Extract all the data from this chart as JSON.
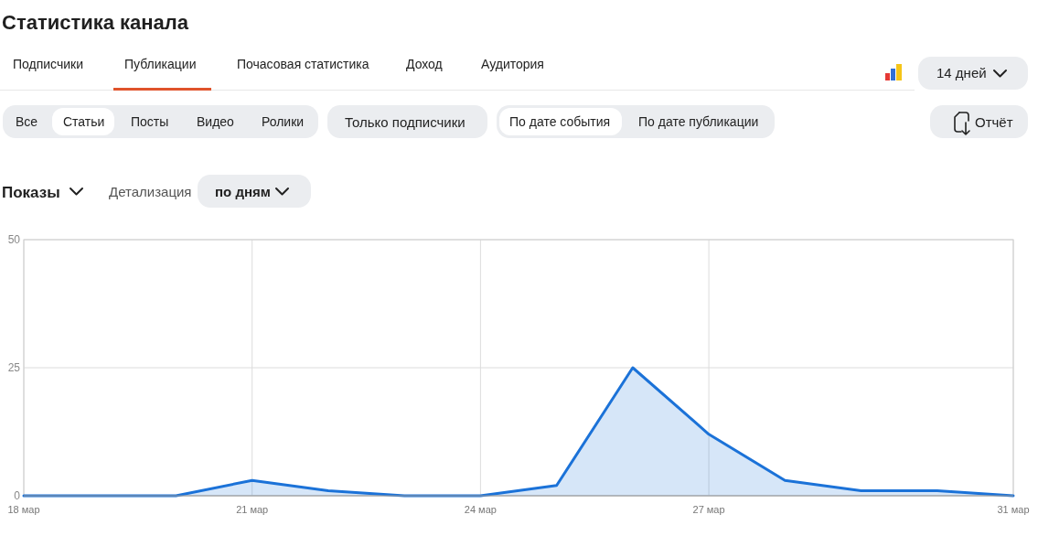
{
  "chart_data": {
    "type": "area",
    "title": "Статистика канала",
    "ylabel": "Показы",
    "annotations": [
      "Подписчики",
      "Публикации",
      "Почасовая статистика",
      "Доход",
      "Аудитория",
      "14 дней",
      "Все",
      "Статьи",
      "Посты",
      "Видео",
      "Ролики",
      "Только подписчики",
      "По дате события",
      "По дате публикации",
      "Отчёт",
      "Детализация",
      "по дням"
    ],
    "categories": [
      "18 мар",
      null,
      null,
      "21 мар",
      null,
      null,
      "24 мар",
      null,
      null,
      "27 мар",
      null,
      null,
      null,
      "31 мар"
    ],
    "values": [
      0,
      0,
      0,
      3,
      1,
      0,
      0,
      2,
      25,
      12,
      3,
      1,
      1,
      0
    ],
    "color": "#1b72d8",
    "ylim": [
      0,
      50
    ],
    "yticks": [
      0,
      25,
      50
    ],
    "grid": true
  }
}
